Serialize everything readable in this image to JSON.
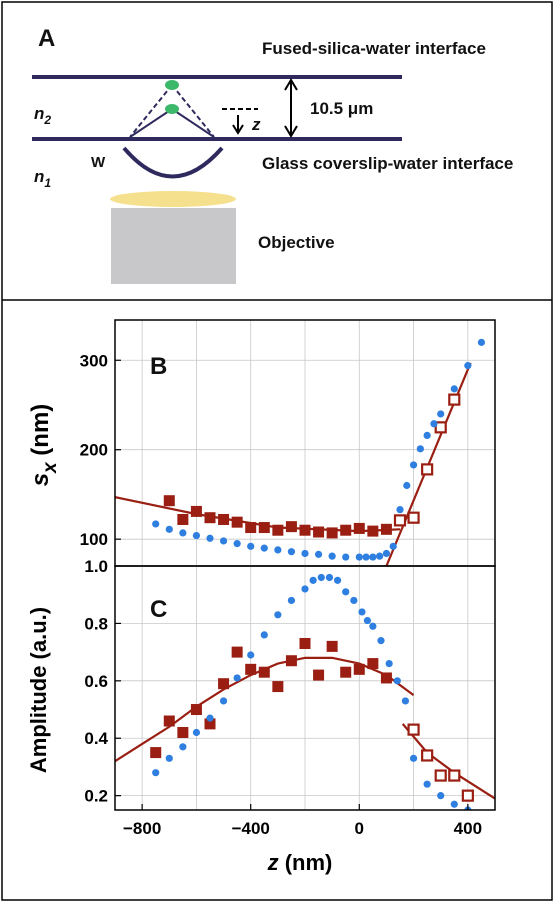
{
  "schematic": {
    "panel_label": "A",
    "top_interface": "Fused-silica-water interface",
    "bottom_interface": "Glass coverslip-water interface",
    "n2": "n",
    "n2_sub": "2",
    "n1": "n",
    "n1_sub": "1",
    "w_label": "W",
    "gap_label": "10.5 μm",
    "z_label": "z",
    "objective_label": "Objective",
    "colors": {
      "interface": "#2e2a5e",
      "particle": "#3cb86a",
      "lens": "#f5e08e",
      "objective": "#c8c8ca"
    }
  },
  "chart_data": [
    {
      "type": "scatter",
      "panel_label": "B",
      "ylabel": "s",
      "ylabel_sub": "x",
      "ylabel_unit": " (nm)",
      "xlim": [
        -900,
        500
      ],
      "ylim": [
        70,
        345
      ],
      "xticks": [
        -800,
        -400,
        0,
        400
      ],
      "yticks": [
        100,
        200,
        300
      ],
      "ytick_labels": [
        "100",
        "200",
        "300"
      ],
      "grid": true,
      "colors": {
        "filled": "#9a1f12",
        "open": "#9a1f12",
        "dots": "#2e7fe0",
        "fit": "#9a1f12"
      },
      "series": [
        {
          "style": "filled-square",
          "x": [
            -700,
            -650,
            -600,
            -550,
            -500,
            -450,
            -400,
            -350,
            -300,
            -250,
            -200,
            -150,
            -100,
            -50,
            0,
            50,
            100
          ],
          "y": [
            143,
            122,
            131,
            124,
            122,
            119,
            113,
            113,
            110,
            114,
            110,
            108,
            107,
            110,
            112,
            109,
            111
          ]
        },
        {
          "style": "open-square",
          "x": [
            150,
            200,
            250,
            300,
            350
          ],
          "y": [
            121,
            124,
            178,
            225,
            256
          ]
        },
        {
          "style": "dot",
          "x": [
            -750,
            -700,
            -650,
            -600,
            -550,
            -500,
            -450,
            -400,
            -350,
            -300,
            -250,
            -200,
            -150,
            -100,
            -50,
            0,
            25,
            50,
            75,
            100,
            125,
            150,
            175,
            200,
            225,
            250,
            275,
            300,
            350,
            400,
            450
          ],
          "y": [
            117,
            111,
            107,
            104,
            101,
            98,
            95,
            92,
            90,
            88,
            86,
            84,
            83,
            81,
            80,
            80,
            80,
            80,
            81,
            84,
            92,
            133,
            160,
            183,
            201,
            216,
            229,
            240,
            268,
            294,
            320
          ]
        },
        {
          "style": "fit-line",
          "x": [
            -900,
            -600,
            -300,
            0,
            150
          ],
          "y": [
            147,
            128,
            113,
            109,
            111
          ]
        },
        {
          "style": "fit-line",
          "x": [
            100,
            410
          ],
          "y": [
            70,
            297
          ]
        }
      ]
    },
    {
      "type": "scatter",
      "panel_label": "C",
      "ylabel": "Amplitude (a.u.)",
      "xlabel": "z",
      "xlabel_unit": " (nm)",
      "xlim": [
        -900,
        500
      ],
      "ylim": [
        0.15,
        1.0
      ],
      "xticks": [
        -800,
        -400,
        0,
        400
      ],
      "xtick_labels": [
        "−800",
        "−400",
        "0",
        "400"
      ],
      "yticks": [
        0.2,
        0.4,
        0.6,
        0.8,
        1.0
      ],
      "ytick_labels": [
        "0.2",
        "0.4",
        "0.6",
        "0.8",
        "1.0"
      ],
      "grid": true,
      "colors": {
        "filled": "#9a1f12",
        "open": "#9a1f12",
        "dots": "#2e7fe0",
        "fit": "#9a1f12"
      },
      "series": [
        {
          "style": "filled-square",
          "x": [
            -750,
            -700,
            -650,
            -600,
            -550,
            -500,
            -450,
            -400,
            -350,
            -300,
            -250,
            -200,
            -150,
            -100,
            -50,
            0,
            50,
            100
          ],
          "y": [
            0.35,
            0.46,
            0.42,
            0.5,
            0.45,
            0.59,
            0.7,
            0.64,
            0.63,
            0.58,
            0.67,
            0.73,
            0.62,
            0.72,
            0.63,
            0.64,
            0.66,
            0.61
          ]
        },
        {
          "style": "open-square",
          "x": [
            200,
            250,
            300,
            350,
            400
          ],
          "y": [
            0.43,
            0.34,
            0.27,
            0.27,
            0.2
          ]
        },
        {
          "style": "dot",
          "x": [
            -750,
            -700,
            -650,
            -600,
            -550,
            -500,
            -450,
            -400,
            -350,
            -300,
            -250,
            -200,
            -170,
            -140,
            -110,
            -80,
            -50,
            -20,
            10,
            30,
            50,
            80,
            110,
            140,
            170,
            200,
            250,
            300,
            350,
            400,
            450
          ],
          "y": [
            0.28,
            0.33,
            0.37,
            0.42,
            0.47,
            0.53,
            0.61,
            0.69,
            0.76,
            0.83,
            0.88,
            0.92,
            0.95,
            0.96,
            0.96,
            0.95,
            0.91,
            0.88,
            0.84,
            0.81,
            0.79,
            0.74,
            0.66,
            0.6,
            0.53,
            0.33,
            0.24,
            0.2,
            0.17,
            0.15,
            0.13
          ]
        },
        {
          "style": "fit-line",
          "x": [
            -900,
            -800,
            -700,
            -600,
            -500,
            -400,
            -300,
            -200,
            -100,
            0,
            100,
            200
          ],
          "y": [
            0.32,
            0.38,
            0.44,
            0.51,
            0.57,
            0.62,
            0.66,
            0.68,
            0.68,
            0.66,
            0.62,
            0.55
          ]
        },
        {
          "style": "fit-line",
          "x": [
            160,
            250,
            350,
            450,
            500
          ],
          "y": [
            0.45,
            0.35,
            0.28,
            0.22,
            0.19
          ]
        }
      ]
    }
  ]
}
